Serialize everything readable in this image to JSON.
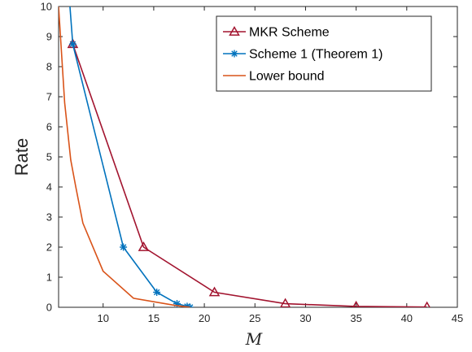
{
  "chart_data": {
    "type": "line",
    "title": "",
    "xlabel": "M",
    "ylabel": "Rate",
    "xlim": [
      5.6,
      45
    ],
    "ylim": [
      0,
      10
    ],
    "xticks": [
      10,
      15,
      20,
      25,
      30,
      35,
      40,
      45
    ],
    "yticks": [
      0,
      1,
      2,
      3,
      4,
      5,
      6,
      7,
      8,
      9,
      10
    ],
    "grid": false,
    "legend_position": "top-right",
    "series": [
      {
        "name": "MKR Scheme",
        "color": "#a2142f",
        "marker": "triangle",
        "x": [
          7,
          14,
          21,
          28,
          35,
          42
        ],
        "y": [
          8.75,
          2.0,
          0.5,
          0.12,
          0.03,
          0.01
        ]
      },
      {
        "name": "Scheme 1 (Theorem 1)",
        "color": "#0072bd",
        "marker": "asterisk",
        "x": [
          6.5,
          7,
          12,
          15.3,
          17.3,
          18.3,
          18.6
        ],
        "y": [
          11,
          8.75,
          2.0,
          0.5,
          0.12,
          0.03,
          0.0
        ]
      },
      {
        "name": "Lower bound",
        "color": "#d95319",
        "marker": "none",
        "x": [
          5.6,
          6.2,
          6.8,
          7.3,
          8,
          10,
          13,
          17,
          18.6
        ],
        "y": [
          10,
          6.8,
          4.9,
          4.0,
          2.8,
          1.2,
          0.3,
          0.07,
          0.0
        ]
      }
    ]
  }
}
